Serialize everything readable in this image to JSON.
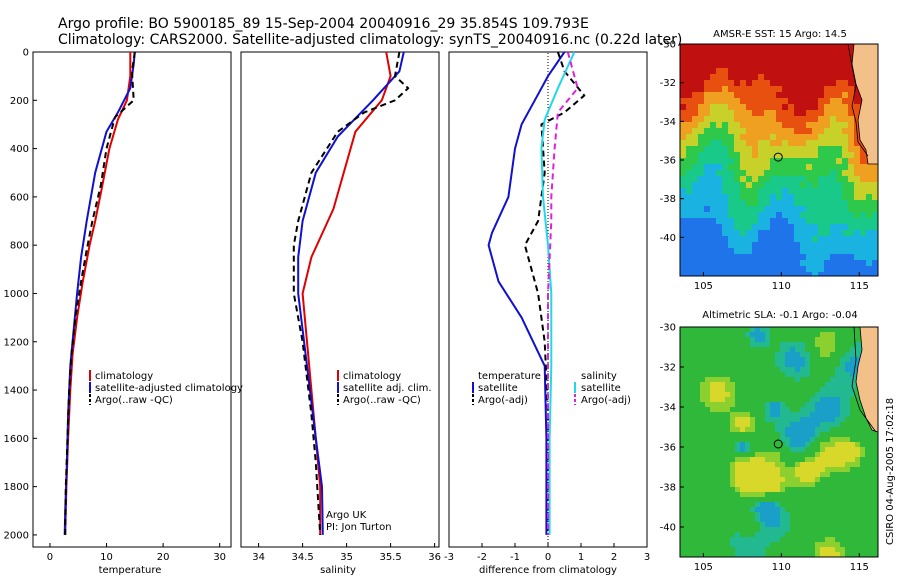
{
  "title": {
    "line1": "Argo profile: BO 5900185_89 15-Sep-2004 20040916_29 35.854S 109.793E",
    "line2": "Climatology: CARS2000. Satellite-adjusted climatology: synTS_20040916.nc (0.22d later)"
  },
  "colors": {
    "climatology": "#e00000",
    "satellite": "#1010d0",
    "argo": "#000000",
    "salinity": "#20d8e8",
    "argo_adj": "#e020e0"
  },
  "chart_data": [
    {
      "type": "line",
      "xlabel": "temperature",
      "xlim": [
        -3,
        32
      ],
      "ylim": [
        0,
        2050
      ],
      "y_reversed": true,
      "xticks": [
        0,
        10,
        20,
        30
      ],
      "yticks": [
        0,
        200,
        400,
        600,
        800,
        1000,
        1200,
        1400,
        1600,
        1800,
        2000
      ],
      "legend": [
        "climatology",
        "satellite-adjusted climatology",
        "Argo(..raw -QC)"
      ],
      "series": [
        {
          "name": "climatology",
          "style": "solid",
          "color": "#e00000",
          "points": [
            [
              14.2,
              0
            ],
            [
              14.2,
              100
            ],
            [
              13.6,
              200
            ],
            [
              12.0,
              280
            ],
            [
              10.5,
              400
            ],
            [
              9.2,
              560
            ],
            [
              8.0,
              700
            ],
            [
              7.0,
              800
            ],
            [
              5.8,
              950
            ],
            [
              4.8,
              1100
            ],
            [
              4.0,
              1250
            ],
            [
              3.6,
              1400
            ],
            [
              3.2,
              1600
            ],
            [
              2.9,
              1800
            ],
            [
              2.7,
              2000
            ]
          ]
        },
        {
          "name": "satellite-adjusted climatology",
          "style": "solid",
          "color": "#1010d0",
          "points": [
            [
              15.0,
              0
            ],
            [
              14.8,
              50
            ],
            [
              14.2,
              150
            ],
            [
              12.0,
              250
            ],
            [
              10.0,
              330
            ],
            [
              8.0,
              500
            ],
            [
              6.5,
              700
            ],
            [
              5.5,
              850
            ],
            [
              4.8,
              1000
            ],
            [
              4.2,
              1150
            ],
            [
              3.6,
              1300
            ],
            [
              3.2,
              1500
            ],
            [
              3.0,
              1700
            ],
            [
              2.7,
              1900
            ],
            [
              2.6,
              2000
            ]
          ]
        },
        {
          "name": "Argo(..raw -QC)",
          "style": "dashed",
          "color": "#000000",
          "points": [
            [
              15.0,
              0
            ],
            [
              14.5,
              80
            ],
            [
              14.8,
              200
            ],
            [
              11.5,
              270
            ],
            [
              10.0,
              400
            ],
            [
              9.0,
              550
            ],
            [
              7.5,
              700
            ],
            [
              6.5,
              820
            ],
            [
              5.5,
              950
            ],
            [
              4.5,
              1100
            ],
            [
              3.8,
              1250
            ],
            [
              3.4,
              1400
            ],
            [
              3.1,
              1600
            ],
            [
              2.8,
              1800
            ],
            [
              2.7,
              2000
            ]
          ]
        }
      ],
      "annotations": []
    },
    {
      "type": "line",
      "xlabel": "salinity",
      "xlim": [
        33.8,
        36.05
      ],
      "ylim": [
        0,
        2050
      ],
      "y_reversed": true,
      "xticks": [
        34,
        34.5,
        35,
        35.5,
        36
      ],
      "yticks": [
        0,
        200,
        400,
        600,
        800,
        1000,
        1200,
        1400,
        1600,
        1800,
        2000
      ],
      "legend": [
        "climatology",
        "satellite adj. clim.",
        "Argo(..raw -QC)"
      ],
      "series": [
        {
          "name": "climatology",
          "style": "solid",
          "color": "#e00000",
          "points": [
            [
              35.45,
              0
            ],
            [
              35.5,
              100
            ],
            [
              35.4,
              200
            ],
            [
              35.1,
              330
            ],
            [
              34.85,
              650
            ],
            [
              34.6,
              850
            ],
            [
              34.5,
              1000
            ],
            [
              34.55,
              1200
            ],
            [
              34.6,
              1400
            ],
            [
              34.65,
              1600
            ],
            [
              34.7,
              1800
            ],
            [
              34.7,
              2000
            ]
          ]
        },
        {
          "name": "satellite adj. clim.",
          "style": "solid",
          "color": "#1010d0",
          "points": [
            [
              35.65,
              0
            ],
            [
              35.6,
              80
            ],
            [
              35.3,
              200
            ],
            [
              34.9,
              350
            ],
            [
              34.65,
              500
            ],
            [
              34.5,
              700
            ],
            [
              34.45,
              850
            ],
            [
              34.45,
              1000
            ],
            [
              34.55,
              1300
            ],
            [
              34.65,
              1600
            ],
            [
              34.72,
              1800
            ],
            [
              34.73,
              2000
            ]
          ]
        },
        {
          "name": "Argo(..raw -QC)",
          "style": "dashed",
          "color": "#000000",
          "points": [
            [
              35.6,
              0
            ],
            [
              35.55,
              100
            ],
            [
              35.7,
              150
            ],
            [
              35.55,
              200
            ],
            [
              35.2,
              250
            ],
            [
              34.9,
              330
            ],
            [
              34.6,
              500
            ],
            [
              34.45,
              700
            ],
            [
              34.4,
              800
            ],
            [
              34.4,
              1000
            ],
            [
              34.5,
              1200
            ],
            [
              34.6,
              1500
            ],
            [
              34.65,
              1700
            ],
            [
              34.7,
              2000
            ]
          ]
        }
      ],
      "annotations": [
        "Argo UK",
        "PI: Jon Turton"
      ]
    },
    {
      "type": "line",
      "xlabel": "difference from climatology",
      "xlim": [
        -3,
        3
      ],
      "ylim": [
        0,
        2050
      ],
      "y_reversed": true,
      "xticks": [
        -3,
        -2,
        -1,
        0,
        1,
        2,
        3
      ],
      "yticks": [
        0,
        200,
        400,
        600,
        800,
        1000,
        1200,
        1400,
        1600,
        1800,
        2000
      ],
      "legend": [
        "temperature",
        "satellite",
        "Argo(-adj)",
        "salinity",
        "satellite",
        "Argo(-adj)"
      ],
      "series": [
        {
          "name": "temperature satellite",
          "style": "solid",
          "color": "#1010d0",
          "points": [
            [
              0.5,
              0
            ],
            [
              0,
              100
            ],
            [
              -0.4,
              200
            ],
            [
              -0.8,
              300
            ],
            [
              -1.0,
              400
            ],
            [
              -1.2,
              600
            ],
            [
              -1.7,
              750
            ],
            [
              -1.8,
              800
            ],
            [
              -1.5,
              950
            ],
            [
              -0.8,
              1100
            ],
            [
              -0.1,
              1300
            ],
            [
              -0.05,
              1600
            ],
            [
              -0.05,
              2000
            ]
          ]
        },
        {
          "name": "temperature Argo(-adj)",
          "style": "dashed",
          "color": "#000000",
          "points": [
            [
              0.3,
              0
            ],
            [
              0.5,
              80
            ],
            [
              1.1,
              180
            ],
            [
              0.5,
              250
            ],
            [
              -0.2,
              300
            ],
            [
              -0.1,
              500
            ],
            [
              -0.3,
              700
            ],
            [
              -0.7,
              800
            ],
            [
              -0.3,
              1000
            ],
            [
              -0.1,
              1200
            ],
            [
              0,
              1500
            ],
            [
              0,
              2000
            ]
          ]
        },
        {
          "name": "salinity satellite",
          "style": "solid",
          "color": "#20d8e8",
          "points": [
            [
              0.8,
              0
            ],
            [
              0.3,
              150
            ],
            [
              -0.1,
              280
            ],
            [
              -0.2,
              400
            ],
            [
              -0.15,
              600
            ],
            [
              0,
              800
            ],
            [
              0.1,
              1000
            ],
            [
              0.1,
              1300
            ],
            [
              0.05,
              1600
            ],
            [
              0.05,
              2000
            ]
          ]
        },
        {
          "name": "salinity Argo(-adj)",
          "style": "dashed",
          "color": "#e020e0",
          "points": [
            [
              0.6,
              0
            ],
            [
              0.9,
              150
            ],
            [
              0.3,
              250
            ],
            [
              0.2,
              400
            ],
            [
              0.1,
              600
            ],
            [
              0.1,
              700
            ],
            [
              0,
              1000
            ],
            [
              0,
              2000
            ]
          ]
        }
      ],
      "annotations": []
    },
    {
      "type": "heatmap",
      "title": "AMSR-E SST: 15 Argo: 14.5",
      "xticks": [
        105,
        110,
        115
      ],
      "yticks": [
        -30,
        -32,
        -34,
        -36,
        -38,
        -40
      ],
      "xlim": [
        103.5,
        116.2
      ],
      "ylim": [
        -42,
        -30
      ],
      "marker": [
        109.8,
        -35.85
      ]
    },
    {
      "type": "heatmap",
      "title": "Altimetric SLA: -0.1 Argo: -0.04",
      "xticks": [
        105,
        110,
        115
      ],
      "yticks": [
        -30,
        -32,
        -34,
        -36,
        -38,
        -40
      ],
      "xlim": [
        103.5,
        116.2
      ],
      "ylim": [
        -41.5,
        -30
      ],
      "marker": [
        109.8,
        -35.85
      ]
    }
  ],
  "footer": "CSIRO 04-Aug-2005 17:02:18"
}
